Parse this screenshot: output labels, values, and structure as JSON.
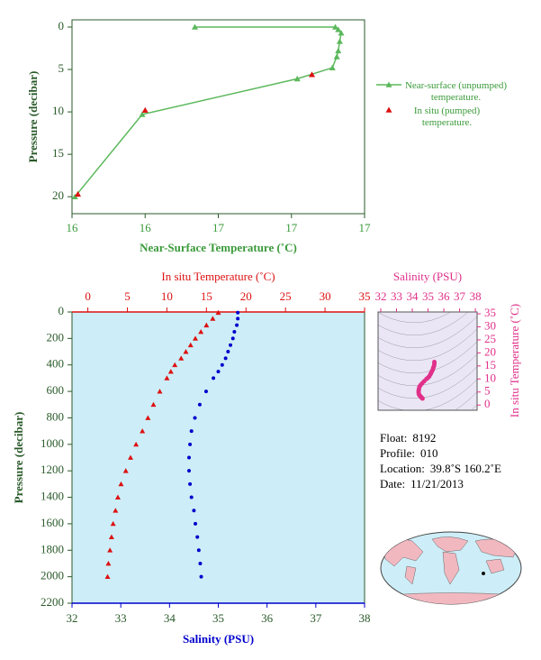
{
  "chart_data": [
    {
      "type": "line",
      "xlabel": "Near-Surface Temperature (˚C)",
      "ylabel": "Pressure (decibar)",
      "xlim": [
        16,
        17
      ],
      "xticks": [
        16,
        {
          "value": 16.25,
          "label": "16"
        },
        {
          "value": 16.5,
          "label": "17"
        },
        {
          "value": 16.75,
          "label": "17"
        },
        17
      ],
      "ylim": [
        -0.85,
        22
      ],
      "yticks": [
        0,
        5,
        10,
        15,
        20
      ],
      "invert_y": true,
      "axis_color": "#2a5a2a",
      "label_color": "#3a9a3a",
      "series": [
        {
          "name": "Near-surface (unpumped) temperature.",
          "color": "#5cb85c",
          "marker": "triangle",
          "line": true,
          "x": [
            16.42,
            16.9,
            16.91,
            16.92,
            16.915,
            16.91,
            16.905,
            16.89,
            16.77,
            16.24,
            16.01
          ],
          "values": [
            0,
            0,
            0.3,
            0.7,
            1.7,
            2.8,
            3.5,
            4.8,
            6.1,
            10.3,
            20.0
          ]
        },
        {
          "name": "In situ (pumped) temperature.",
          "color": "#dd1111",
          "marker": "triangle",
          "line": false,
          "x": [
            16.82,
            16.25,
            16.02
          ],
          "values": [
            5.6,
            9.8,
            19.7
          ]
        }
      ]
    },
    {
      "type": "profile",
      "ylabel": "Pressure (decibar)",
      "ylim": [
        0,
        2200
      ],
      "yticks": [
        0,
        200,
        400,
        600,
        800,
        1000,
        1200,
        1400,
        1600,
        1800,
        2000,
        2200
      ],
      "invert_y": true,
      "xlabel": "Salinity (PSU)",
      "xlim": [
        32,
        38
      ],
      "xticks": [
        32,
        33,
        34,
        35,
        36,
        37,
        38
      ],
      "x2label": "In situ Temperature (˚C)",
      "x2lim": [
        -2,
        35
      ],
      "x2ticks": [
        0,
        5,
        10,
        15,
        20,
        25,
        30,
        35
      ],
      "background": "#cdeef8",
      "y": [
        5,
        50,
        100,
        150,
        200,
        250,
        300,
        350,
        400,
        450,
        500,
        600,
        700,
        800,
        900,
        1000,
        1100,
        1200,
        1300,
        1400,
        1500,
        1600,
        1700,
        1800,
        1900,
        2000
      ],
      "series": [
        {
          "axis": "x2",
          "color": "#dd1111",
          "marker": "triangle",
          "values": [
            16.5,
            15.8,
            15.0,
            14.3,
            13.6,
            13.0,
            12.4,
            11.8,
            11.0,
            10.5,
            10.0,
            9.1,
            8.3,
            7.6,
            6.9,
            6.1,
            5.4,
            4.8,
            4.2,
            3.8,
            3.5,
            3.2,
            3.0,
            2.8,
            2.6,
            2.5
          ]
        },
        {
          "axis": "x",
          "color": "#0000cc",
          "marker": "dot",
          "values": [
            35.4,
            35.4,
            35.38,
            35.33,
            35.3,
            35.25,
            35.2,
            35.15,
            35.08,
            35.0,
            34.9,
            34.75,
            34.62,
            34.52,
            34.45,
            34.42,
            34.4,
            34.4,
            34.42,
            34.45,
            34.5,
            34.53,
            34.57,
            34.6,
            34.63,
            34.65
          ]
        }
      ]
    },
    {
      "type": "ts_diagram",
      "xlabel": "Salinity (PSU)",
      "ylabel": "In situ Temperature (˚C)",
      "xlim": [
        31.83,
        38.11
      ],
      "xticks": [
        32,
        33,
        34,
        35,
        36,
        37,
        38
      ],
      "ylim": [
        -2,
        35.7
      ],
      "yticks": [
        0,
        5,
        10,
        15,
        20,
        25,
        30,
        35
      ],
      "color": "#e0308a",
      "background": "#ebe6f5"
    }
  ],
  "info": [
    {
      "label": "Float:",
      "value": "8192"
    },
    {
      "label": "Profile:",
      "value": "010"
    },
    {
      "label": "Location:",
      "value": "39.8˚S  160.2˚E"
    },
    {
      "label": "Date:",
      "value": "11/21/2013"
    }
  ]
}
